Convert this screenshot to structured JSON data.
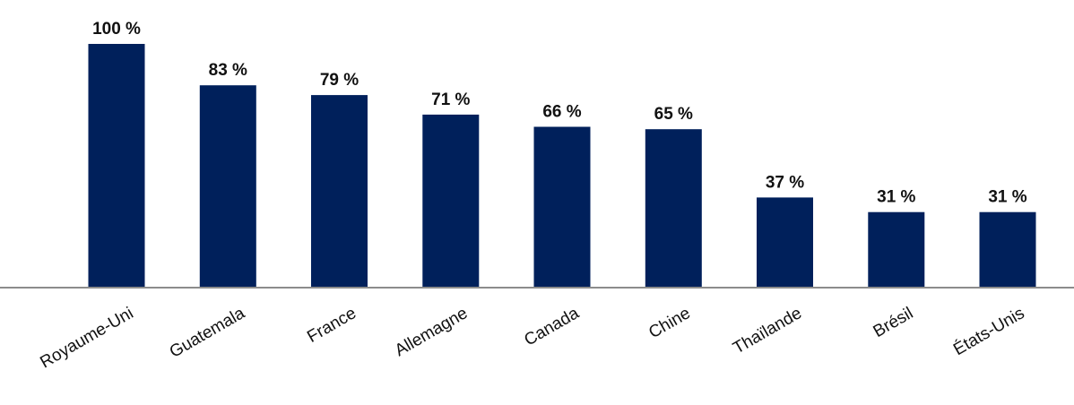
{
  "chart_data": {
    "type": "bar",
    "title": "",
    "xlabel": "",
    "ylabel": "",
    "ylim": [
      0,
      100
    ],
    "grid": false,
    "legend": "none",
    "value_suffix": " %",
    "colors": {
      "bar": "#00205b",
      "axis": "#8c8c8c",
      "text": "#111111"
    },
    "categories": [
      "Royaume-Uni",
      "Guatemala",
      "France",
      "Allemagne",
      "Canada",
      "Chine",
      "Thaïlande",
      "Brésil",
      "États-Unis"
    ],
    "values": [
      100,
      83,
      79,
      71,
      66,
      65,
      37,
      31,
      31
    ],
    "data_labels": [
      "100 %",
      "83 %",
      "79 %",
      "71 %",
      "66 %",
      "65 %",
      "37 %",
      "31 %",
      "31 %"
    ]
  }
}
